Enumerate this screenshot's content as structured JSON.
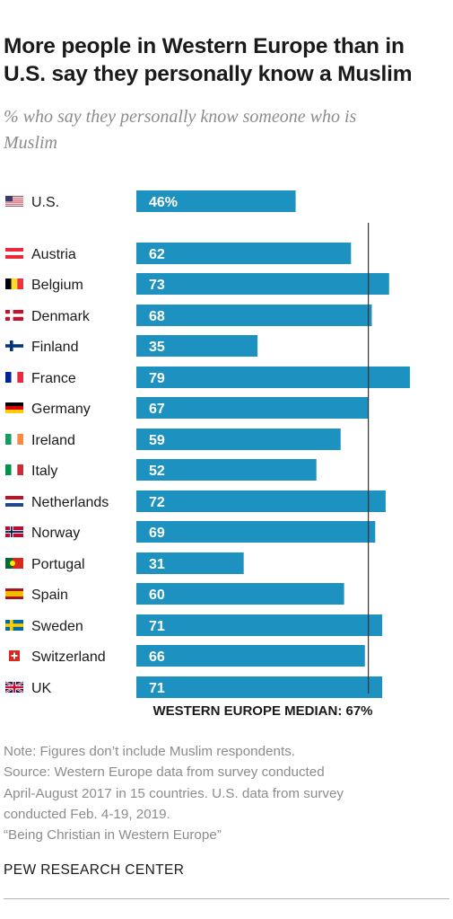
{
  "title_lines": [
    "More people in Western Europe than in",
    "U.S. say they personally know a Muslim"
  ],
  "subtitle_lines": [
    "% who say they personally know someone who is",
    "Muslim"
  ],
  "colors": {
    "bar": "#1d91c0",
    "median_line": "#333333",
    "bar_label": "#ffffff"
  },
  "chart_data": {
    "type": "bar",
    "orientation": "horizontal",
    "categories": [
      "U.S.",
      "Austria",
      "Belgium",
      "Denmark",
      "Finland",
      "France",
      "Germany",
      "Ireland",
      "Italy",
      "Netherlands",
      "Norway",
      "Portugal",
      "Spain",
      "Sweden",
      "Switzerland",
      "UK"
    ],
    "values": [
      46,
      62,
      73,
      68,
      35,
      79,
      67,
      59,
      52,
      72,
      69,
      31,
      60,
      71,
      66,
      71
    ],
    "value_labels": [
      "46%",
      "62",
      "73",
      "68",
      "35",
      "79",
      "67",
      "59",
      "52",
      "72",
      "69",
      "31",
      "60",
      "71",
      "66",
      "71"
    ],
    "flag_icons": [
      "us-flag-icon",
      "austria-flag-icon",
      "belgium-flag-icon",
      "denmark-flag-icon",
      "finland-flag-icon",
      "france-flag-icon",
      "germany-flag-icon",
      "ireland-flag-icon",
      "italy-flag-icon",
      "netherlands-flag-icon",
      "norway-flag-icon",
      "portugal-flag-icon",
      "spain-flag-icon",
      "sweden-flag-icon",
      "switzerland-flag-icon",
      "uk-flag-icon"
    ],
    "reference_line": {
      "value": 67,
      "label": "WESTERN EUROPE MEDIAN: 67%"
    },
    "xlim": [
      0,
      100
    ],
    "title": "More people in Western Europe than in U.S. say they personally know a Muslim",
    "subtitle": "% who say they personally know someone who is Muslim",
    "xlabel": "",
    "ylabel": "",
    "grid": false,
    "legend": "none"
  },
  "notes": [
    "Note: Figures don’t include Muslim respondents.",
    "Source: Western Europe data from survey conducted",
    "April-August 2017 in 15 countries. U.S. data from survey",
    "conducted Feb. 4-19, 2019.",
    "“Being Christian in Western Europe”"
  ],
  "source_org": "PEW RESEARCH CENTER"
}
